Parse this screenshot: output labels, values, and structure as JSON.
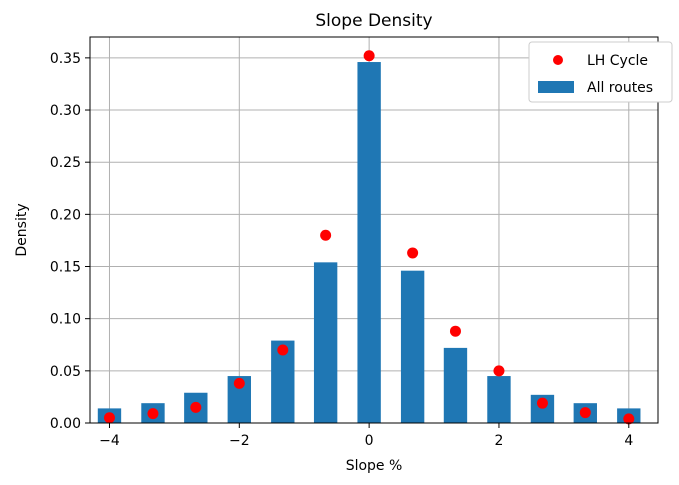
{
  "chart_data": {
    "type": "bar",
    "title": "Slope Density",
    "xlabel": "Slope %",
    "ylabel": "Density",
    "xlim": [
      -4.3,
      4.45
    ],
    "ylim": [
      0,
      0.37
    ],
    "grid": true,
    "legend_position": "top-right",
    "xticks": [
      -4,
      -2,
      0,
      2,
      4
    ],
    "xtick_labels": [
      "−4",
      "−2",
      "0",
      "2",
      "4"
    ],
    "yticks": [
      0.0,
      0.05,
      0.1,
      0.15,
      0.2,
      0.25,
      0.3,
      0.35
    ],
    "ytick_labels": [
      "0.00",
      "0.05",
      "0.10",
      "0.15",
      "0.20",
      "0.25",
      "0.30",
      "0.35"
    ],
    "bar_width": 0.36,
    "series": [
      {
        "name": "All routes",
        "type": "bar",
        "color": "#1f77b4",
        "x": [
          -4,
          -3.33,
          -2.67,
          -2,
          -1.33,
          -0.67,
          0,
          0.67,
          1.33,
          2,
          2.67,
          3.33,
          4
        ],
        "values": [
          0.014,
          0.019,
          0.029,
          0.045,
          0.079,
          0.154,
          0.346,
          0.146,
          0.072,
          0.045,
          0.027,
          0.019,
          0.014
        ]
      },
      {
        "name": "LH Cycle",
        "type": "scatter",
        "color": "#ff0000",
        "x": [
          -4,
          -3.33,
          -2.67,
          -2,
          -1.33,
          -0.67,
          0,
          0.67,
          1.33,
          2,
          2.67,
          3.33,
          4
        ],
        "values": [
          0.005,
          0.009,
          0.015,
          0.038,
          0.07,
          0.18,
          0.352,
          0.163,
          0.088,
          0.05,
          0.019,
          0.01,
          0.004
        ]
      }
    ]
  }
}
